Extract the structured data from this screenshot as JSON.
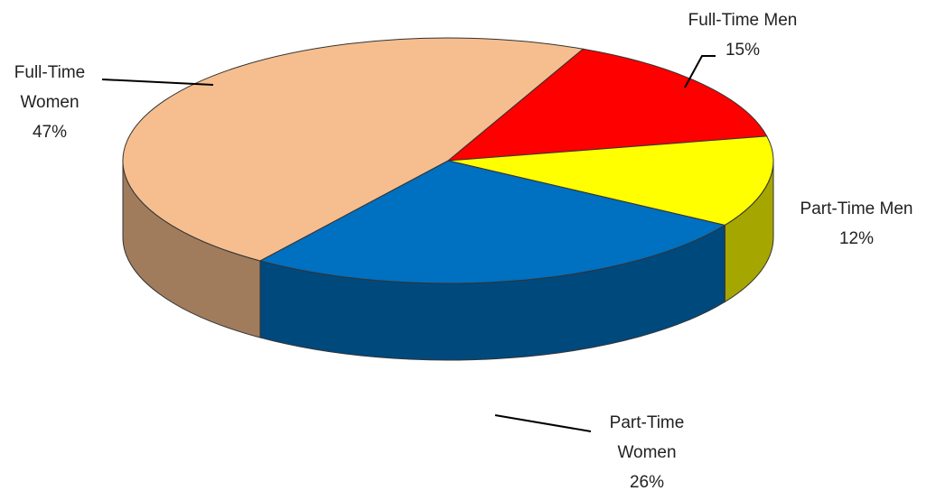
{
  "chart_data": {
    "type": "pie",
    "categories": [
      "Full-Time Men",
      "Part-Time Men",
      "Part-Time Women",
      "Full-Time Women"
    ],
    "values": [
      15,
      12,
      26,
      47
    ],
    "value_labels": [
      "15%",
      "12%",
      "26%",
      "47%"
    ],
    "colors": [
      "#ff0000",
      "#ffff00",
      "#0070c0",
      "#f6be8f"
    ]
  }
}
